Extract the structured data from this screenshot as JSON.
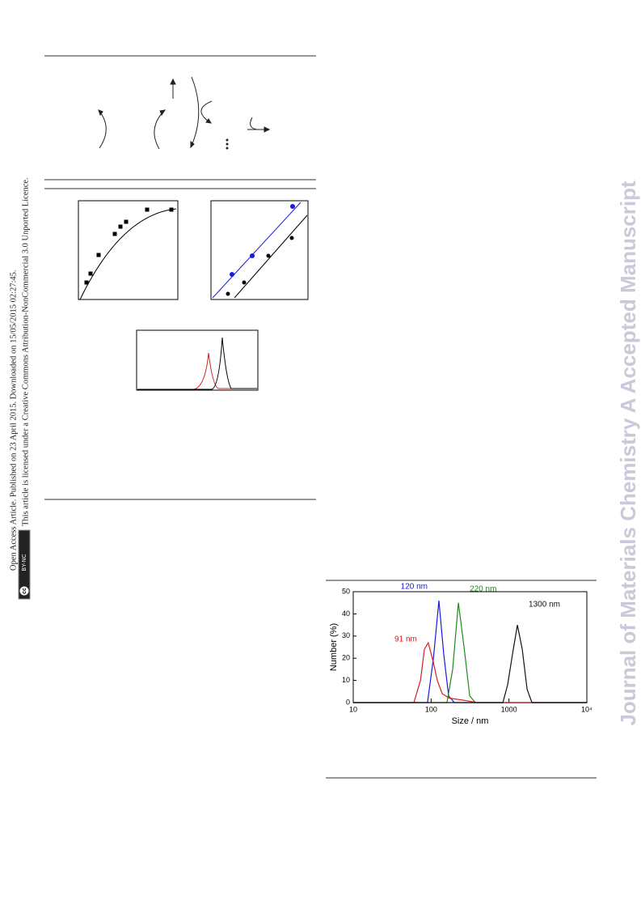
{
  "document": {
    "side_note": {
      "line1": "Open Access Article. Published on 23 April 2015. Downloaded on 15/05/2015 02:27:45.",
      "line2": "This article is licensed under a Creative Commons Attribution-NonCommercial 3.0 Unported Licence.",
      "badge_cc": "cc",
      "badge_license": "BY-NC"
    },
    "watermark": "Journal of Materials Chemistry A Accepted Manuscript"
  },
  "chart_data": {
    "type": "line",
    "x_label": "Size / nm",
    "y_label": "Number (%)",
    "log_x": true,
    "xlim": [
      10,
      10000
    ],
    "xticks": [
      10,
      100,
      1000,
      {
        "value": 10000,
        "label": "10⁴"
      }
    ],
    "ylim": [
      0,
      50
    ],
    "yticks": [
      0,
      10,
      20,
      30,
      40,
      50
    ],
    "series": [
      {
        "name": "120 nm",
        "color": "#1a1adc",
        "x": [
          10,
          90,
          107,
          126,
          145,
          168,
          199,
          10000
        ],
        "values": [
          0,
          0,
          20,
          46,
          22,
          3,
          0,
          0
        ]
      },
      {
        "name": "220 nm",
        "color": "#1e8a1e",
        "x": [
          10,
          160,
          189,
          224,
          265,
          313,
          370,
          10000
        ],
        "values": [
          0,
          0,
          15,
          45,
          25,
          3,
          0,
          0
        ]
      },
      {
        "name": "91 nm",
        "color": "#d42020",
        "x": [
          10,
          60,
          73,
          82,
          92,
          107,
          120,
          139,
          172,
          271,
          388,
          10000
        ],
        "values": [
          0,
          0,
          10,
          24,
          27,
          18,
          10,
          4,
          2,
          1,
          0,
          0
        ]
      },
      {
        "name": "1300 nm",
        "color": "#111111",
        "x": [
          10,
          834,
          962,
          1111,
          1282,
          1480,
          1709,
          1972,
          10000
        ],
        "values": [
          0,
          0,
          8,
          22,
          35,
          24,
          6,
          0,
          0
        ]
      }
    ]
  }
}
